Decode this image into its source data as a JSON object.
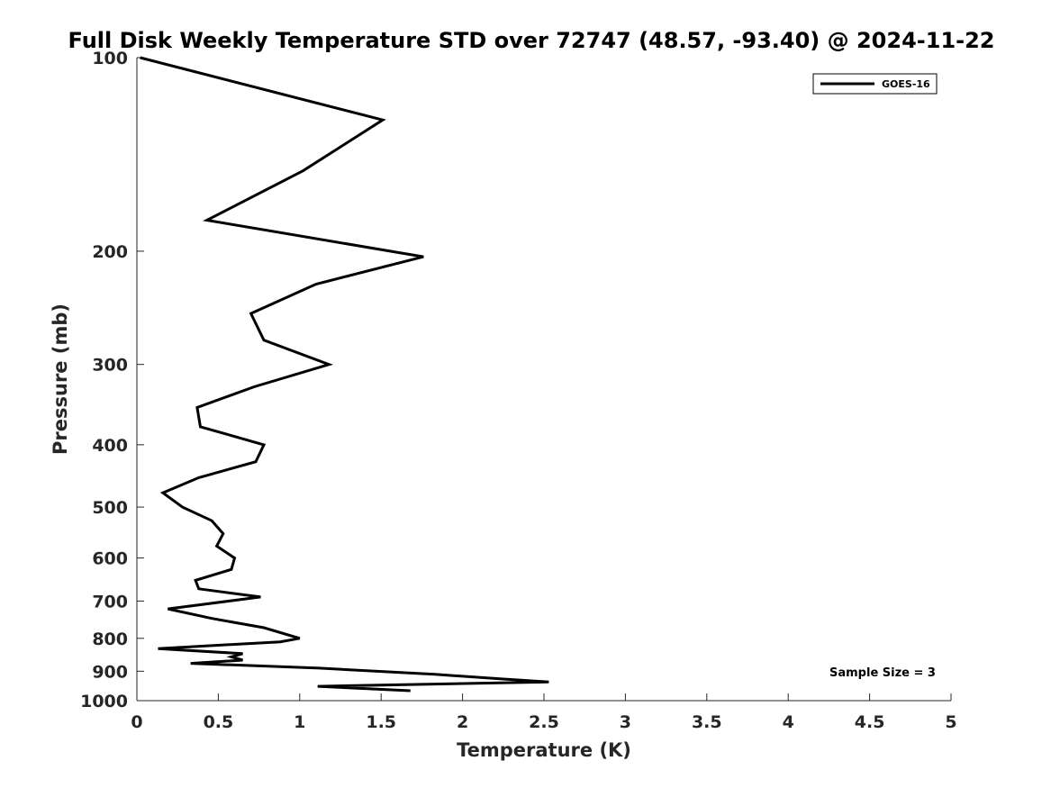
{
  "chart_data": {
    "type": "line",
    "title": "Full Disk Weekly Temperature STD over 72747 (48.57, -93.40) @ 2024-11-22",
    "xlabel": "Temperature (K)",
    "ylabel": "Pressure (mb)",
    "xlim": [
      0,
      5
    ],
    "ylim": [
      1000,
      100
    ],
    "y_scale": "log",
    "x_ticks": [
      "0",
      "0.5",
      "1",
      "1.5",
      "2",
      "2.5",
      "3",
      "3.5",
      "4",
      "4.5",
      "5"
    ],
    "y_ticks": [
      "100",
      "200",
      "300",
      "400",
      "500",
      "600",
      "700",
      "800",
      "900",
      "1000"
    ],
    "grid": false,
    "legend": {
      "position": "top-right",
      "entries": [
        "GOES-16"
      ]
    },
    "annotation": "Sample Size = 3",
    "series": [
      {
        "name": "GOES-16",
        "color": "#000000",
        "points": [
          [
            0.02,
            100
          ],
          [
            1.51,
            125
          ],
          [
            1.02,
            150
          ],
          [
            0.43,
            179
          ],
          [
            1.76,
            204
          ],
          [
            1.1,
            225
          ],
          [
            0.7,
            250
          ],
          [
            0.78,
            275
          ],
          [
            1.18,
            300
          ],
          [
            0.72,
            325
          ],
          [
            0.37,
            350
          ],
          [
            0.39,
            375
          ],
          [
            0.78,
            400
          ],
          [
            0.73,
            425
          ],
          [
            0.38,
            450
          ],
          [
            0.16,
            475
          ],
          [
            0.28,
            500
          ],
          [
            0.46,
            525
          ],
          [
            0.53,
            550
          ],
          [
            0.49,
            575
          ],
          [
            0.6,
            600
          ],
          [
            0.58,
            625
          ],
          [
            0.36,
            650
          ],
          [
            0.38,
            670
          ],
          [
            0.76,
            690
          ],
          [
            0.19,
            720
          ],
          [
            0.46,
            745
          ],
          [
            0.78,
            770
          ],
          [
            1.0,
            800
          ],
          [
            0.88,
            810
          ],
          [
            0.13,
            830
          ],
          [
            0.65,
            845
          ],
          [
            0.58,
            855
          ],
          [
            0.65,
            865
          ],
          [
            0.33,
            875
          ],
          [
            1.12,
            890
          ],
          [
            1.83,
            910
          ],
          [
            2.23,
            925
          ],
          [
            2.53,
            935
          ],
          [
            1.11,
            950
          ],
          [
            1.68,
            965
          ]
        ]
      }
    ]
  }
}
